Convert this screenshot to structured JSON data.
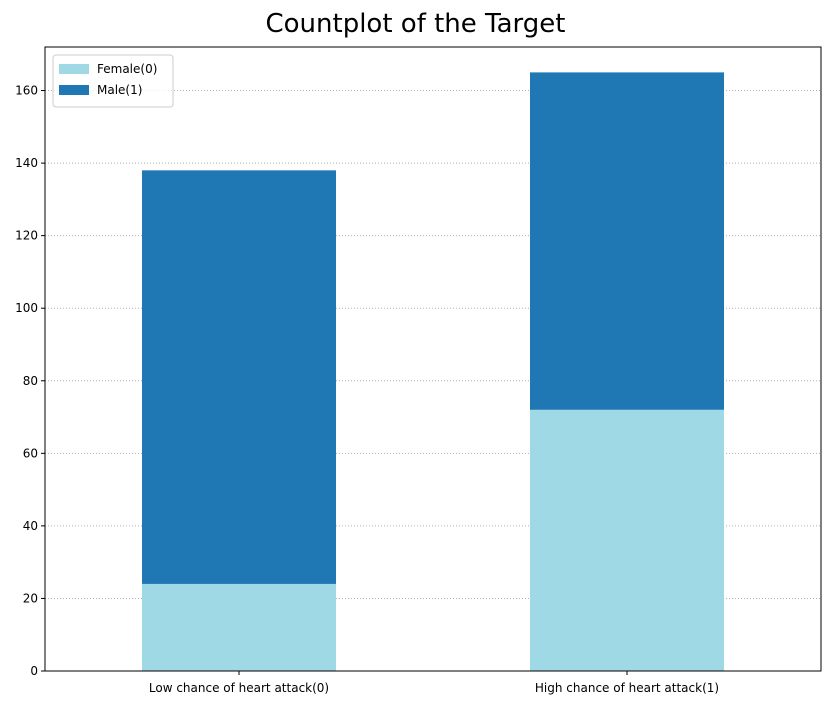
{
  "chart_data": {
    "type": "bar",
    "stacked": true,
    "title": "Countplot of the Target",
    "xlabel": "",
    "ylabel": "",
    "categories": [
      "Low chance of heart attack(0)",
      "High chance of heart attack(1)"
    ],
    "series": [
      {
        "name": "Female(0)",
        "values": [
          24,
          72
        ],
        "color": "#9fd9e5"
      },
      {
        "name": "Male(1)",
        "values": [
          114,
          93
        ],
        "color": "#1f77b4"
      }
    ],
    "ylim": [
      0,
      172
    ],
    "yticks": [
      0,
      20,
      40,
      60,
      80,
      100,
      120,
      140,
      160
    ],
    "grid": {
      "y": true,
      "style": "dotted"
    },
    "legend_position": "top-left"
  }
}
